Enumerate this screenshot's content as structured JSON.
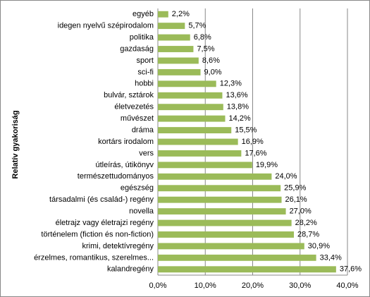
{
  "chart_data": {
    "type": "bar",
    "orientation": "horizontal",
    "y_label": "Relatív gyakoriság",
    "categories": [
      "egyéb",
      "idegen nyelvű szépirodalom",
      "politika",
      "gazdaság",
      "sport",
      "sci-fi",
      "hobbi",
      "bulvár, sztárok",
      "életvezetés",
      "művészet",
      "dráma",
      "kortárs irodalom",
      "vers",
      "útleírás, útikönyv",
      "természettudományos",
      "egészség",
      "társadalmi (és család-) regény",
      "novella",
      "életrajz vagy életrajzi regény",
      "történelem (fiction és non-fiction)",
      "krimi, detektívregény",
      "érzelmes, romantikus, szerelmes...",
      "kalandregény"
    ],
    "values": [
      2.2,
      5.7,
      6.8,
      7.5,
      8.6,
      9.0,
      12.3,
      13.6,
      13.8,
      14.2,
      15.5,
      16.9,
      17.6,
      19.9,
      24.0,
      25.9,
      26.1,
      27.0,
      28.2,
      28.7,
      30.9,
      33.4,
      37.6
    ],
    "value_labels": [
      "2,2%",
      "5,7%",
      "6,8%",
      "7,5%",
      "8,6%",
      "9,0%",
      "12,3%",
      "13,6%",
      "13,8%",
      "14,2%",
      "15,5%",
      "16,9%",
      "17,6%",
      "19,9%",
      "24,0%",
      "25,9%",
      "26,1%",
      "27,0%",
      "28,2%",
      "28,7%",
      "30,9%",
      "33,4%",
      "37,6%"
    ],
    "color": "#9bbb59",
    "xlim": [
      0,
      40
    ],
    "xticks": [
      {
        "value": 0,
        "label": "0,0%"
      },
      {
        "value": 10,
        "label": "10,0%"
      },
      {
        "value": 20,
        "label": "20,0%"
      },
      {
        "value": 30,
        "label": "30,0%"
      },
      {
        "value": 40,
        "label": "40,0%"
      }
    ],
    "grid": true
  }
}
